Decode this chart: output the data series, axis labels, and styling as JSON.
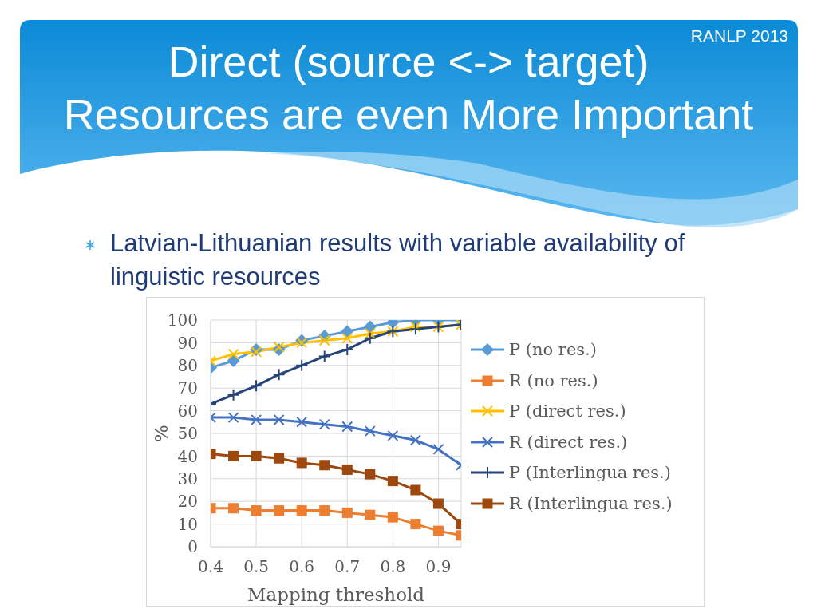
{
  "chart_data": {
    "type": "line",
    "title": "Direct (source <-> target)\nResources are even More Important",
    "subtitle": "Latvian-Lithuanian results with variable availability of linguistic resources",
    "annotations": [
      "RANLP 2013"
    ],
    "xlabel": "Mapping threshold",
    "ylabel": "%",
    "x": [
      0.4,
      0.45,
      0.5,
      0.55,
      0.6,
      0.65,
      0.7,
      0.75,
      0.8,
      0.85,
      0.9,
      0.95
    ],
    "xlim": [
      0.4,
      0.95
    ],
    "xticks": [
      0.4,
      0.5,
      0.6,
      0.7,
      0.8,
      0.9
    ],
    "ylim": [
      0,
      100
    ],
    "yticks": [
      0,
      10,
      20,
      30,
      40,
      50,
      60,
      70,
      80,
      90,
      100
    ],
    "grid": true,
    "legend": "right",
    "series": [
      {
        "name": "P (no res.)",
        "color": "#5b9bd5",
        "marker": "diamond",
        "values": [
          79,
          82,
          87,
          87,
          91,
          93,
          95,
          97,
          99,
          100,
          100,
          100
        ]
      },
      {
        "name": "R (no res.)",
        "color": "#ed7d31",
        "marker": "square",
        "values": [
          17,
          17,
          16,
          16,
          16,
          16,
          15,
          14,
          13,
          10,
          7,
          5
        ]
      },
      {
        "name": "P (direct res.)",
        "color": "#ffc000",
        "marker": "cross",
        "values": [
          82,
          85,
          86,
          88,
          90,
          91,
          92,
          94,
          95,
          97,
          97,
          98
        ]
      },
      {
        "name": "R (direct res.)",
        "color": "#4472c4",
        "marker": "cross",
        "values": [
          57,
          57,
          56,
          56,
          55,
          54,
          53,
          51,
          49,
          47,
          43,
          36
        ]
      },
      {
        "name": "P (Interlingua res.)",
        "color": "#264478",
        "marker": "plus",
        "values": [
          63,
          67,
          71,
          76,
          80,
          84,
          87,
          92,
          95,
          96,
          97,
          98
        ]
      },
      {
        "name": "R (Interlingua res.)",
        "color": "#9e480e",
        "marker": "square",
        "values": [
          41,
          40,
          40,
          39,
          37,
          36,
          34,
          32,
          29,
          25,
          19,
          10
        ]
      }
    ]
  }
}
